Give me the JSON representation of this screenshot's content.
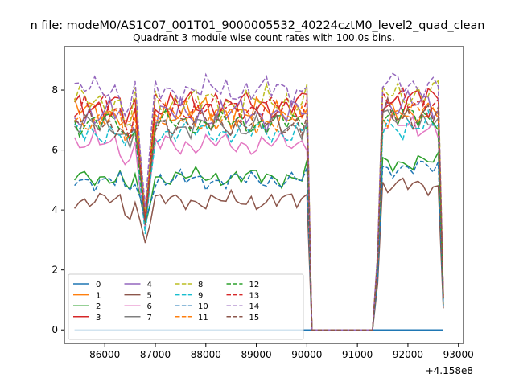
{
  "figure": {
    "suptitle": "n file: modeM0/AS1C07_001T01_9000005532_40224cztM0_level2_quad_clean",
    "title": "Quadrant 3 module wise count rates with 100.0s bins."
  },
  "chart_data": {
    "type": "line",
    "xlim": [
      85200,
      93100
    ],
    "ylim": [
      -0.45,
      9.45
    ],
    "x_offset_label": "+4.158e8",
    "xticks": [
      86000,
      87000,
      88000,
      89000,
      90000,
      91000,
      92000,
      93000
    ],
    "xtick_labels": [
      "86000",
      "87000",
      "88000",
      "89000",
      "90000",
      "91000",
      "92000",
      "93000"
    ],
    "yticks": [
      0,
      2,
      4,
      6,
      8
    ],
    "ytick_labels": [
      "0",
      "2",
      "4",
      "6",
      "8"
    ],
    "grid": false,
    "legend": {
      "placement": "lower-left",
      "columns": 4
    },
    "x_sampling": {
      "start": 85400,
      "step": 100,
      "count": 74
    },
    "gap": {
      "start_index": 46,
      "end_index": 60
    },
    "colors": [
      "#1f77b4",
      "#ff7f0e",
      "#2ca02c",
      "#d62728",
      "#9467bd",
      "#8c564b",
      "#e377c2",
      "#7f7f7f",
      "#bcbd22",
      "#17becf"
    ],
    "series": [
      {
        "name": "0",
        "style": "solid",
        "zero": true
      },
      {
        "name": "1",
        "style": "solid",
        "base": 7.3,
        "seg2": 7.3,
        "amp": 0.45,
        "dip": 3.6
      },
      {
        "name": "2",
        "style": "solid",
        "base": 5.1,
        "seg2": 5.6,
        "amp": 0.3,
        "dip": 3.5
      },
      {
        "name": "3",
        "style": "solid",
        "base": 7.5,
        "seg2": 7.7,
        "amp": 0.45,
        "dip": 3.7
      },
      {
        "name": "4",
        "style": "solid",
        "base": 7.2,
        "seg2": 7.5,
        "amp": 0.5,
        "dip": 3.8
      },
      {
        "name": "5",
        "style": "solid",
        "base": 4.3,
        "seg2": 4.8,
        "amp": 0.3,
        "dip": 2.9
      },
      {
        "name": "6",
        "style": "solid",
        "base": 6.2,
        "seg2": 6.8,
        "amp": 0.4,
        "dip": 3.4
      },
      {
        "name": "7",
        "style": "solid",
        "base": 6.8,
        "seg2": 7.0,
        "amp": 0.4,
        "dip": 3.5
      },
      {
        "name": "8",
        "style": "dashed",
        "base": 7.6,
        "seg2": 7.9,
        "amp": 0.5,
        "dip": 3.9
      },
      {
        "name": "9",
        "style": "dashed",
        "base": 6.6,
        "seg2": 6.8,
        "amp": 0.4,
        "dip": 3.2
      },
      {
        "name": "10",
        "style": "dashed",
        "base": 5.0,
        "seg2": 5.4,
        "amp": 0.3,
        "dip": 3.6
      },
      {
        "name": "11",
        "style": "dashed",
        "base": 7.0,
        "seg2": 7.2,
        "amp": 0.4,
        "dip": 3.7
      },
      {
        "name": "12",
        "style": "dashed",
        "base": 6.9,
        "seg2": 7.1,
        "amp": 0.4,
        "dip": 3.6
      },
      {
        "name": "13",
        "style": "dashed",
        "base": 7.4,
        "seg2": 7.6,
        "amp": 0.45,
        "dip": 3.7
      },
      {
        "name": "14",
        "style": "dashed",
        "base": 8.0,
        "seg2": 8.2,
        "amp": 0.45,
        "dip": 4.1
      },
      {
        "name": "15",
        "style": "dashed",
        "base": 6.9,
        "seg2": 7.2,
        "amp": 0.45,
        "dip": 3.5
      }
    ]
  }
}
